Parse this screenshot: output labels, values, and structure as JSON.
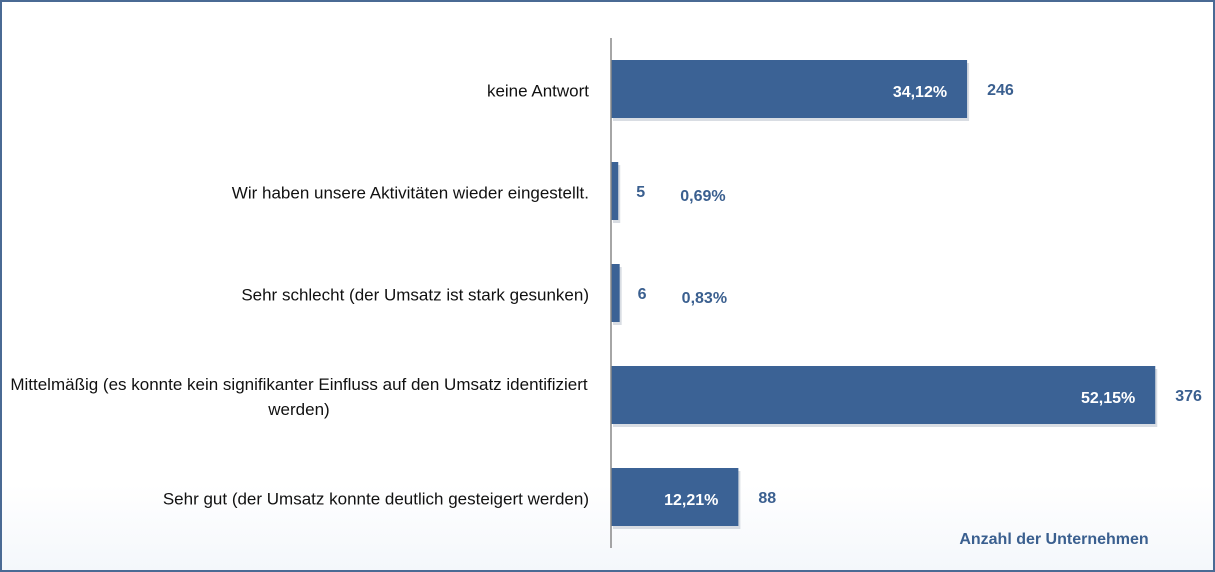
{
  "chart_data": {
    "type": "bar",
    "orientation": "horizontal",
    "categories": [
      "keine Antwort",
      "Wir haben unsere Aktivitäten wieder eingestellt.",
      "Sehr schlecht (der Umsatz ist stark gesunken)",
      "Mittelmäßig (es konnte kein signifikanter Einfluss auf den Umsatz identifiziert werden)",
      "Sehr gut (der Umsatz konnte deutlich gesteigert werden)"
    ],
    "values": [
      246,
      5,
      6,
      376,
      88
    ],
    "share_labels": [
      "34,12%",
      "0,69%",
      "0,83%",
      "52,15%",
      "12,21%"
    ],
    "color": "#3b6295",
    "xlim": [
      0,
      400
    ],
    "xlabel": "Anzahl der Unternehmen"
  }
}
